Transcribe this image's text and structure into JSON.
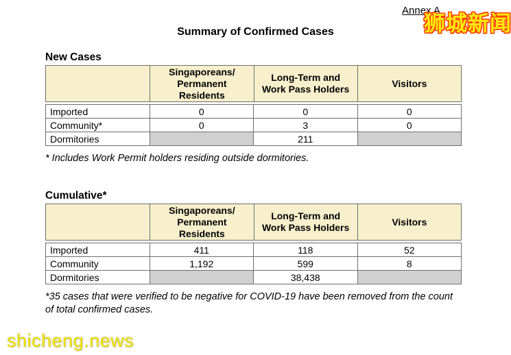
{
  "page": {
    "annex_label": "Annex A",
    "title": "Summary of Confirmed Cases",
    "watermark_top": "狮城新闻",
    "watermark_bottom": "shicheng.news"
  },
  "colors": {
    "table_header_bg": "#F8F0CC",
    "blocked_cell_bg": "#D0D0D0",
    "table_border": "#6D6D6D",
    "watermark_fill_yellow": "#FFE812",
    "watermark_outline_red": "#FF4000",
    "watermark_bottom_yellow": "#F0E300"
  },
  "tables": [
    {
      "heading": "New Cases",
      "col_headers": [
        [
          "Singaporeans/",
          "Permanent",
          "Residents"
        ],
        [
          "Long-Term and",
          "Work Pass Holders"
        ],
        [
          "Visitors"
        ]
      ],
      "rows": [
        {
          "label": "Imported",
          "values": [
            "0",
            "0",
            "0"
          ]
        },
        {
          "label": "Community*",
          "values": [
            "0",
            "3",
            "0"
          ]
        },
        {
          "label": "Dormitories",
          "values": [
            "",
            "211",
            ""
          ]
        }
      ],
      "footnote_lines": [
        "* Includes Work Permit holders residing outside dormitories."
      ]
    },
    {
      "heading": "Cumulative*",
      "col_headers": [
        [
          "Singaporeans/",
          "Permanent",
          "Residents"
        ],
        [
          "Long-Term and",
          "Work Pass Holders"
        ],
        [
          "Visitors"
        ]
      ],
      "rows": [
        {
          "label": "Imported",
          "values": [
            "411",
            "118",
            "52"
          ]
        },
        {
          "label": "Community",
          "values": [
            "1,192",
            "599",
            "8"
          ]
        },
        {
          "label": "Dormitories",
          "values": [
            "",
            "38,438",
            ""
          ]
        }
      ],
      "footnote_lines": [
        "*35 cases that were verified to be negative for COVID-19 have been removed from the count",
        "of total confirmed cases."
      ]
    }
  ]
}
